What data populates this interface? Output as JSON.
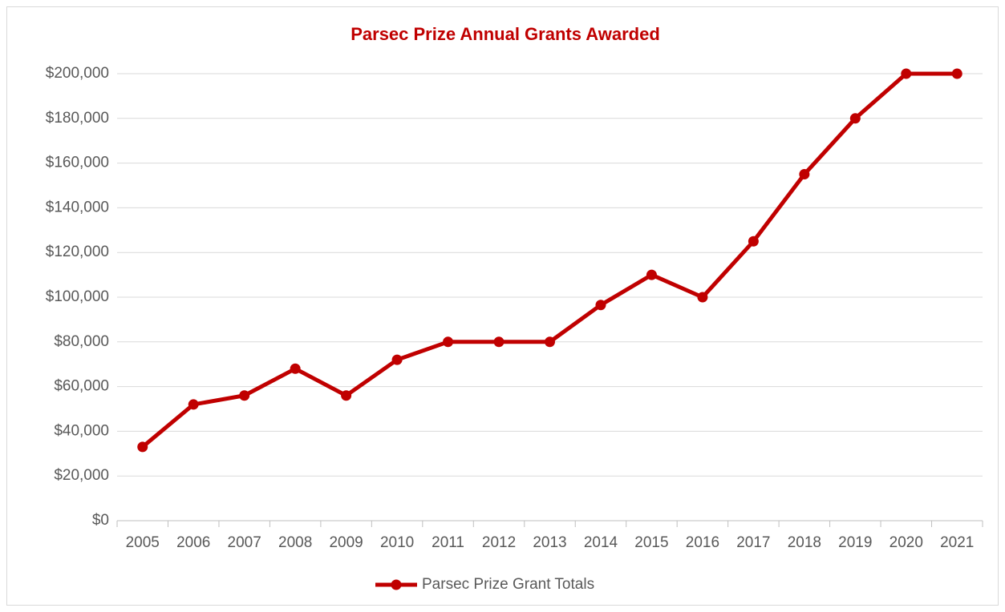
{
  "chart_data": {
    "type": "line",
    "title": "Parsec Prize Annual Grants Awarded",
    "categories": [
      "2005",
      "2006",
      "2007",
      "2008",
      "2009",
      "2010",
      "2011",
      "2012",
      "2013",
      "2014",
      "2015",
      "2016",
      "2017",
      "2018",
      "2019",
      "2020",
      "2021"
    ],
    "series": [
      {
        "name": "Parsec Prize Grant Totals",
        "color": "#c00000",
        "values": [
          33000,
          52000,
          56000,
          68000,
          56000,
          72000,
          80000,
          80000,
          80000,
          96500,
          110000,
          100000,
          125000,
          155000,
          180000,
          200000,
          200000
        ]
      }
    ],
    "ylim": [
      0,
      200000
    ],
    "yticks": [
      {
        "value": 0,
        "label": "$0"
      },
      {
        "value": 20000,
        "label": "$20,000"
      },
      {
        "value": 40000,
        "label": "$40,000"
      },
      {
        "value": 60000,
        "label": "$60,000"
      },
      {
        "value": 80000,
        "label": "$80,000"
      },
      {
        "value": 100000,
        "label": "$100,000"
      },
      {
        "value": 120000,
        "label": "$120,000"
      },
      {
        "value": 140000,
        "label": "$140,000"
      },
      {
        "value": 160000,
        "label": "$160,000"
      },
      {
        "value": 180000,
        "label": "$180,000"
      },
      {
        "value": 200000,
        "label": "$200,000"
      }
    ],
    "grid": true,
    "legend": "bottom"
  }
}
